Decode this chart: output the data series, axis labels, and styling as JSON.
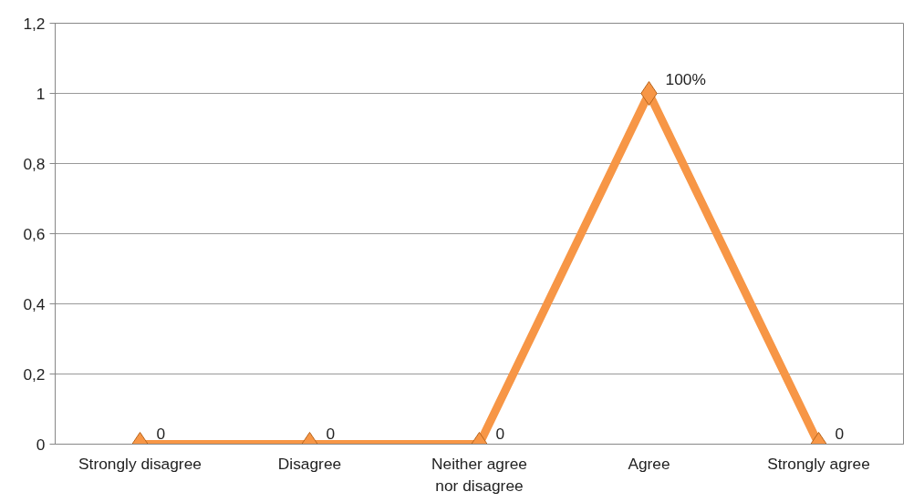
{
  "chart_data": {
    "type": "line",
    "categories": [
      "Strongly disagree",
      "Disagree",
      "Neither agree\nnor disagree",
      "Agree",
      "Strongly agree"
    ],
    "series": [
      {
        "color": "#f79646",
        "values": [
          0,
          0,
          0,
          1,
          0
        ],
        "value_labels": [
          "0",
          "0",
          "0",
          "100%",
          "0"
        ]
      }
    ],
    "ylim": [
      0,
      1.2
    ],
    "yticks": [
      0,
      {
        "value": 0.2,
        "label": "0,2"
      },
      {
        "value": 0.4,
        "label": "0,4"
      },
      {
        "value": 0.6,
        "label": "0,6"
      },
      {
        "value": 0.8,
        "label": "0,8"
      },
      1,
      {
        "value": 1.2,
        "label": "1,2"
      }
    ],
    "grid": "y",
    "marker": "diamond",
    "line_style": "solid"
  }
}
